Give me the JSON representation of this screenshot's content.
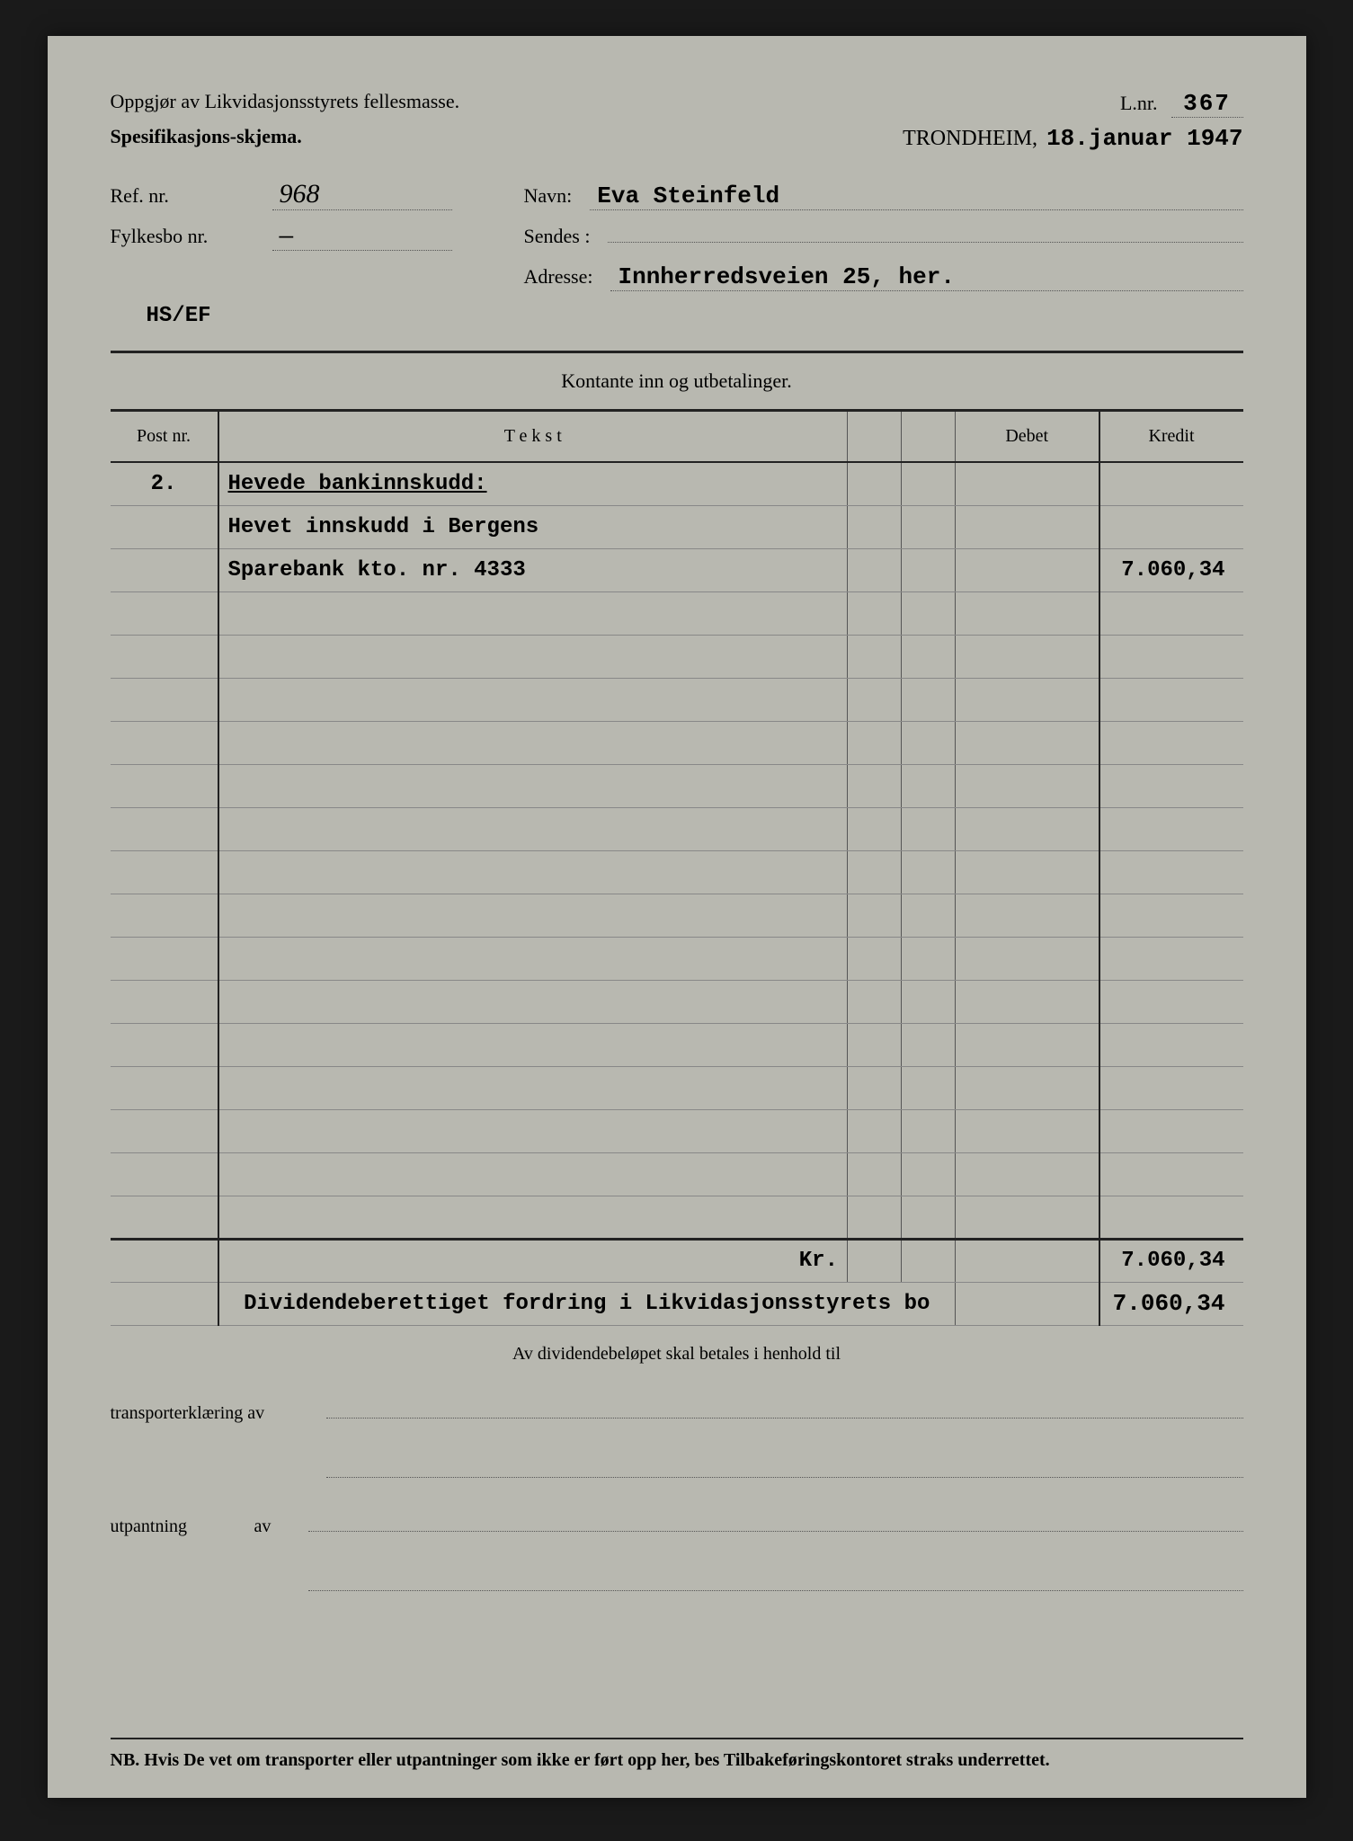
{
  "header": {
    "title_line1": "Oppgjør av Likvidasjonsstyrets fellesmasse.",
    "title_line2": "Spesifikasjons-skjema.",
    "lnr_label": "L.nr.",
    "lnr_value": "367",
    "city": "TRONDHEIM,",
    "date": "18.januar 1947"
  },
  "meta": {
    "ref_label": "Ref. nr.",
    "ref_value": "968",
    "navn_label": "Navn:",
    "navn_value": "Eva Steinfeld",
    "fylkesbo_label": "Fylkesbo nr.",
    "fylkesbo_value": "—",
    "sendes_label": "Sendes :",
    "sendes_value": "",
    "adresse_label": "Adresse:",
    "adresse_value": "Innherredsveien 25, her.",
    "ref_code": "HS/EF"
  },
  "section_title": "Kontante inn og utbetalinger.",
  "columns": {
    "post": "Post nr.",
    "tekst": "T e k s t",
    "debet": "Debet",
    "kredit": "Kredit"
  },
  "rows": [
    {
      "post": "2.",
      "text": "Hevede bankinnskudd:",
      "underline": true,
      "debet": "",
      "kredit": ""
    },
    {
      "post": "",
      "text": "Hevet innskudd i Bergens",
      "debet": "",
      "kredit": ""
    },
    {
      "post": "",
      "text": "Sparebank kto. nr. 4333",
      "debet": "",
      "kredit": "7.060,34"
    },
    {
      "post": "",
      "text": "",
      "debet": "",
      "kredit": ""
    },
    {
      "post": "",
      "text": "",
      "debet": "",
      "kredit": ""
    },
    {
      "post": "",
      "text": "",
      "debet": "",
      "kredit": ""
    },
    {
      "post": "",
      "text": "",
      "debet": "",
      "kredit": ""
    },
    {
      "post": "",
      "text": "",
      "debet": "",
      "kredit": ""
    },
    {
      "post": "",
      "text": "",
      "debet": "",
      "kredit": ""
    },
    {
      "post": "",
      "text": "",
      "debet": "",
      "kredit": ""
    },
    {
      "post": "",
      "text": "",
      "debet": "",
      "kredit": ""
    },
    {
      "post": "",
      "text": "",
      "debet": "",
      "kredit": ""
    },
    {
      "post": "",
      "text": "",
      "debet": "",
      "kredit": ""
    },
    {
      "post": "",
      "text": "",
      "debet": "",
      "kredit": ""
    },
    {
      "post": "",
      "text": "",
      "debet": "",
      "kredit": ""
    },
    {
      "post": "",
      "text": "",
      "debet": "",
      "kredit": ""
    },
    {
      "post": "",
      "text": "",
      "debet": "",
      "kredit": ""
    },
    {
      "post": "",
      "text": "",
      "debet": "",
      "kredit": ""
    }
  ],
  "totals": {
    "label": "Kr.",
    "debet": "",
    "kredit": "7.060,34"
  },
  "dividend": {
    "label": "Dividendeberettiget fordring i Likvidasjonsstyrets bo",
    "kredit": "7.060,34"
  },
  "footer": {
    "dividende_text": "Av dividendebeløpet skal betales i henhold til",
    "transport_label": "transporterklæring av",
    "utpantning_label": "utpantning",
    "utpantning_av": "av",
    "nb": "NB. Hvis De vet om transporter eller utpantninger som ikke er ført opp her, bes Tilbakeføringskontoret straks underrettet."
  },
  "colors": {
    "page_bg": "#b8b8b0",
    "text": "#222222",
    "line": "#222222",
    "dotted": "#555555"
  }
}
